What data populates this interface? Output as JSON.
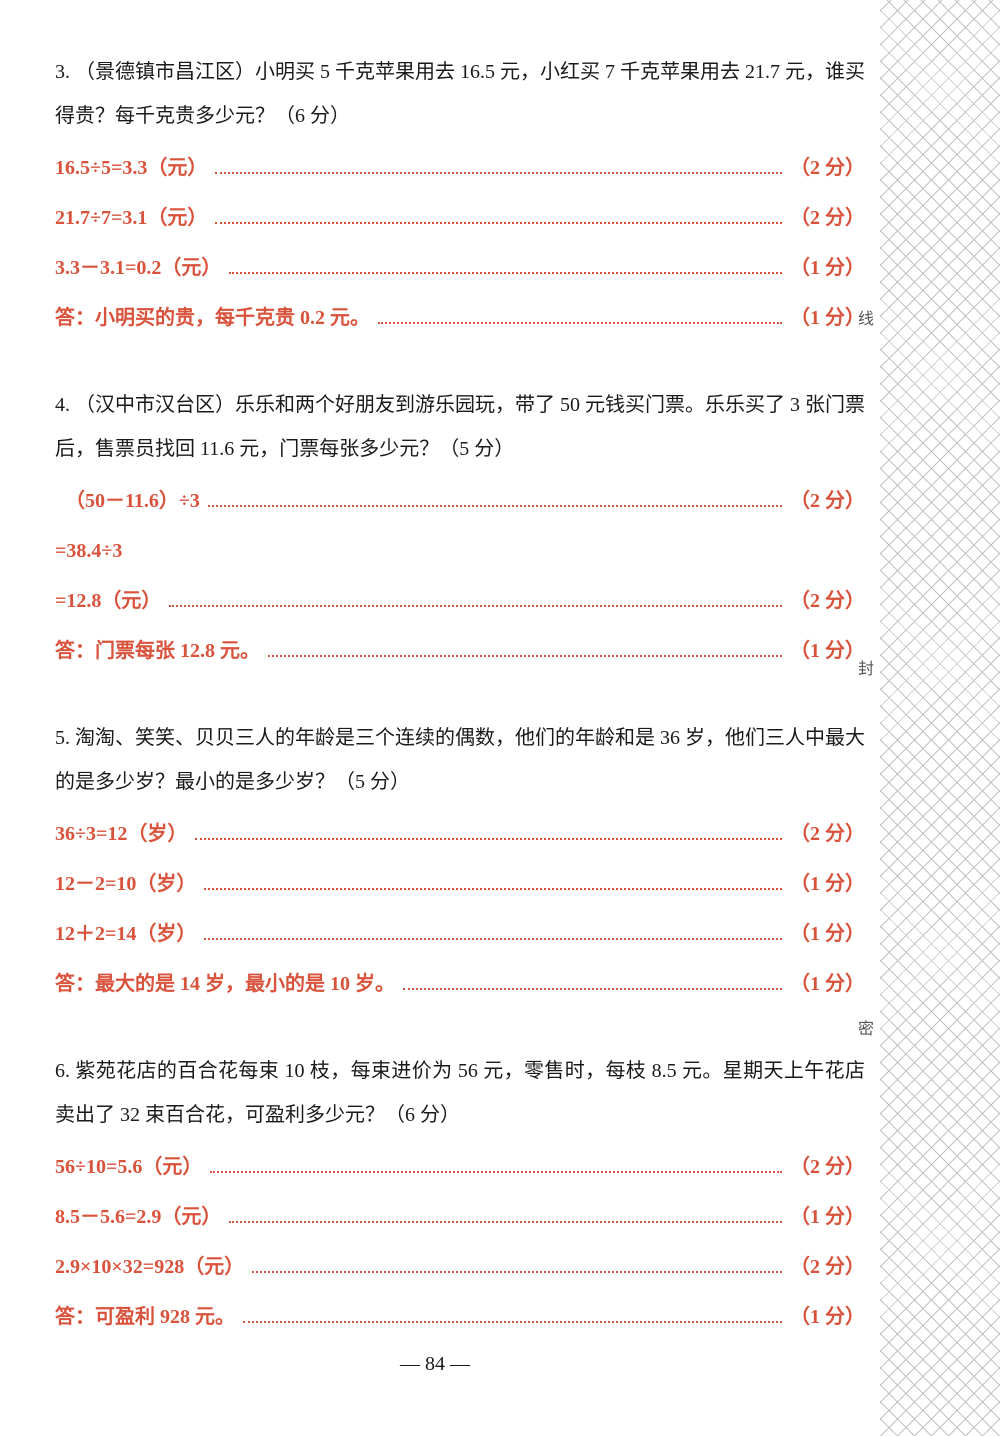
{
  "page_number": "84",
  "colors": {
    "question_text": "#1a1a1a",
    "answer_text": "#d9533c",
    "background": "#ffffff"
  },
  "side_labels": [
    "线",
    "封",
    "密"
  ],
  "problems": [
    {
      "number": "3.",
      "question": "（景德镇市昌江区）小明买 5 千克苹果用去 16.5 元，小红买 7 千克苹果用去 21.7 元，谁买得贵？每千克贵多少元？（6 分）",
      "answers": [
        {
          "text": "16.5÷5=3.3（元）",
          "points": "（2 分）"
        },
        {
          "text": "21.7÷7=3.1（元）",
          "points": "（2 分）"
        },
        {
          "text": "3.3－3.1=0.2（元）",
          "points": "（1 分）"
        },
        {
          "text": "答：小明买的贵，每千克贵 0.2 元。",
          "points": "（1 分）"
        }
      ]
    },
    {
      "number": "4.",
      "question": "（汉中市汉台区）乐乐和两个好朋友到游乐园玩，带了 50 元钱买门票。乐乐买了 3 张门票后，售票员找回 11.6 元，门票每张多少元？（5 分）",
      "answers": [
        {
          "text": "　（50－11.6）÷3",
          "points": "（2 分）"
        },
        {
          "text": "=38.4÷3",
          "points": ""
        },
        {
          "text": "=12.8（元）",
          "points": "（2 分）"
        },
        {
          "text": "答：门票每张 12.8 元。",
          "points": "（1 分）"
        }
      ]
    },
    {
      "number": "5.",
      "question": "淘淘、笑笑、贝贝三人的年龄是三个连续的偶数，他们的年龄和是 36 岁，他们三人中最大的是多少岁？最小的是多少岁？（5 分）",
      "answers": [
        {
          "text": "36÷3=12（岁）",
          "points": "（2 分）"
        },
        {
          "text": "12－2=10（岁）",
          "points": "（1 分）"
        },
        {
          "text": "12＋2=14（岁）",
          "points": "（1 分）"
        },
        {
          "text": "答：最大的是 14 岁，最小的是 10 岁。",
          "points": "（1 分）"
        }
      ]
    },
    {
      "number": "6.",
      "question": "紫苑花店的百合花每束 10 枝，每束进价为 56 元，零售时，每枝 8.5 元。星期天上午花店卖出了 32 束百合花，可盈利多少元？（6 分）",
      "answers": [
        {
          "text": "56÷10=5.6（元）",
          "points": "（2 分）"
        },
        {
          "text": "8.5－5.6=2.9（元）",
          "points": "（1 分）"
        },
        {
          "text": "2.9×10×32=928（元）",
          "points": "（2 分）"
        },
        {
          "text": "答：可盈利 928 元。",
          "points": "（1 分）"
        }
      ]
    }
  ]
}
